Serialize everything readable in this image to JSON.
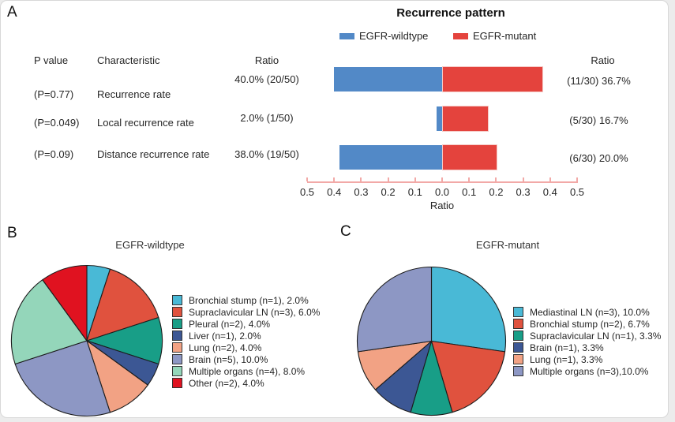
{
  "panel_labels": {
    "a": "A",
    "b": "B",
    "c": "C"
  },
  "panel_a": {
    "title": "Recurrence pattern",
    "legend": [
      {
        "label": "EGFR-wildtype",
        "color": "#5289c7"
      },
      {
        "label": "EGFR-mutant",
        "color": "#e4433d"
      }
    ],
    "headers": {
      "p_value": "P value",
      "characteristic": "Characteristic",
      "ratio_left": "Ratio",
      "ratio_right": "Ratio"
    },
    "rows": [
      {
        "p_value": "(P=0.77)",
        "characteristic": "Recurrence rate",
        "ratio_left": "40.0% (20/50)",
        "ratio_right": "(11/30) 36.7%"
      },
      {
        "p_value": "(P=0.049)",
        "characteristic": "Local recurrence rate",
        "ratio_left": "2.0% (1/50)",
        "ratio_right": "(5/30) 16.7%"
      },
      {
        "p_value": "(P=0.09)",
        "characteristic": "Distance recurrence rate",
        "ratio_left": "38.0% (19/50)",
        "ratio_right": "(6/30) 20.0%"
      }
    ],
    "axis_label": "Ratio"
  },
  "panel_b": {
    "title": "EGFR-wildtype"
  },
  "panel_c": {
    "title": "EGFR-mutant"
  },
  "chart_data": [
    {
      "type": "bar",
      "subtype": "horizontal-diverging",
      "title": "Recurrence pattern",
      "categories": [
        "Recurrence rate",
        "Local recurrence rate",
        "Distance recurrence rate"
      ],
      "series": [
        {
          "name": "EGFR-wildtype",
          "direction": "left",
          "values": [
            0.4,
            0.02,
            0.38
          ],
          "labels": [
            "40.0% (20/50)",
            "2.0% (1/50)",
            "38.0% (19/50)"
          ],
          "color": "#5289c7"
        },
        {
          "name": "EGFR-mutant",
          "direction": "right",
          "values": [
            0.367,
            0.167,
            0.2
          ],
          "labels": [
            "(11/30) 36.7%",
            "(5/30) 16.7%",
            "(6/30) 20.0%"
          ],
          "color": "#e4433d"
        }
      ],
      "p_values": [
        "(P=0.77)",
        "(P=0.049)",
        "(P=0.09)"
      ],
      "xlabel": "Ratio",
      "xlim": [
        -0.5,
        0.5
      ],
      "tick_labels": [
        "0.5",
        "0.4",
        "0.3",
        "0.2",
        "0.1",
        "0.0",
        "0.1",
        "0.2",
        "0.3",
        "0.4",
        "0.5"
      ],
      "axis_color": "#f2a9a7",
      "legend_position": "top",
      "grid": false
    },
    {
      "type": "pie",
      "title": "EGFR-wildtype",
      "start_angle": "top",
      "direction": "clockwise",
      "outline_color": "#1c1c1c",
      "slices": [
        {
          "label": "Bronchial stump (n=1), 2.0%",
          "n": 1,
          "pct": 2.0,
          "color": "#49b9d6"
        },
        {
          "label": "Supraclavicular LN (n=3), 6.0%",
          "n": 3,
          "pct": 6.0,
          "color": "#e0523e"
        },
        {
          "label": "Pleural (n=2), 4.0%",
          "n": 2,
          "pct": 4.0,
          "color": "#189e87"
        },
        {
          "label": "Liver (n=1), 2.0%",
          "n": 1,
          "pct": 2.0,
          "color": "#3c5794"
        },
        {
          "label": "Lung (n=2), 4.0%",
          "n": 2,
          "pct": 4.0,
          "color": "#f2a284"
        },
        {
          "label": "Brain (n=5), 10.0%",
          "n": 5,
          "pct": 10.0,
          "color": "#8d97c4"
        },
        {
          "label": "Multiple organs (n=4), 8.0%",
          "n": 4,
          "pct": 8.0,
          "color": "#94d6ba"
        },
        {
          "label": "Other (n=2), 4.0%",
          "n": 2,
          "pct": 4.0,
          "color": "#e01220"
        }
      ],
      "legend_position": "right"
    },
    {
      "type": "pie",
      "title": "EGFR-mutant",
      "start_angle": "top",
      "direction": "clockwise",
      "outline_color": "#1c1c1c",
      "slices": [
        {
          "label": "Mediastinal LN (n=3), 10.0%",
          "n": 3,
          "pct": 10.0,
          "color": "#49b9d6"
        },
        {
          "label": "Bronchial stump (n=2), 6.7%",
          "n": 2,
          "pct": 6.7,
          "color": "#e0523e"
        },
        {
          "label": "Supraclavicular LN (n=1), 3.3%",
          "n": 1,
          "pct": 3.3,
          "color": "#189e87"
        },
        {
          "label": "Brain (n=1), 3.3%",
          "n": 1,
          "pct": 3.3,
          "color": "#3c5794"
        },
        {
          "label": "Lung (n=1), 3.3%",
          "n": 1,
          "pct": 3.3,
          "color": "#f2a284"
        },
        {
          "label": "Multiple organs (n=3),10.0%",
          "n": 3,
          "pct": 10.0,
          "color": "#8d97c4"
        }
      ],
      "legend_position": "right"
    }
  ]
}
